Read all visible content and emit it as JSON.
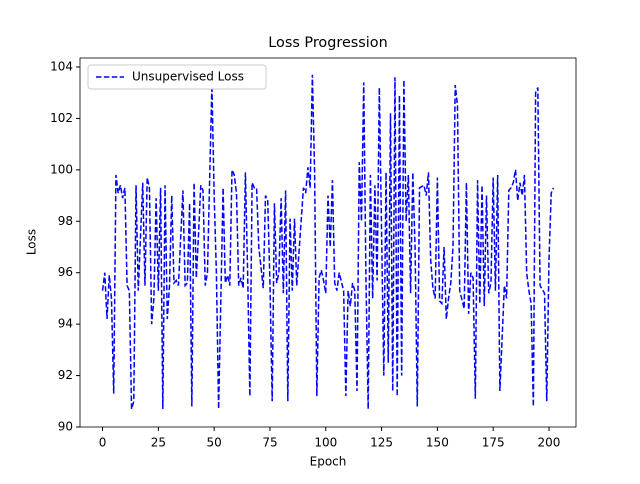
{
  "chart_data": {
    "type": "line",
    "title": "Loss Progression",
    "x_label": "Epoch",
    "y_label": "Loss",
    "legend": "upper left",
    "grid": false,
    "x": [
      0,
      1,
      2,
      3,
      4,
      5,
      6,
      7,
      8,
      9,
      10,
      11,
      12,
      13,
      14,
      15,
      16,
      18,
      19,
      20,
      21,
      22,
      23,
      24,
      25,
      26,
      27,
      28,
      29,
      30,
      31,
      32,
      33,
      34,
      36,
      37,
      38,
      39,
      40,
      41,
      42,
      43,
      44,
      45,
      46,
      47,
      48,
      49,
      50,
      51,
      52,
      54,
      55,
      56,
      57,
      58,
      59,
      60,
      61,
      62,
      63,
      64,
      65,
      66,
      67,
      68,
      69,
      70,
      72,
      73,
      74,
      75,
      76,
      77,
      78,
      79,
      80,
      81,
      82,
      83,
      84,
      85,
      86,
      87,
      88,
      90,
      91,
      92,
      93,
      94,
      95,
      96,
      97,
      98,
      99,
      100,
      101,
      102,
      103,
      104,
      105,
      106,
      108,
      109,
      110,
      111,
      112,
      113,
      114,
      115,
      116,
      117,
      118,
      119,
      120,
      121,
      122,
      123,
      124,
      126,
      127,
      128,
      129,
      130,
      131,
      132,
      133,
      134,
      135,
      136,
      137,
      138,
      139,
      140,
      141,
      142,
      144,
      145,
      146,
      147,
      148,
      149,
      150,
      151,
      152,
      153,
      154,
      155,
      156,
      157,
      158,
      159,
      160,
      162,
      163,
      164,
      165,
      166,
      167,
      168,
      169,
      170,
      171,
      172,
      173,
      174,
      175,
      176,
      177,
      178,
      180,
      181,
      182,
      183,
      184,
      185,
      186,
      187,
      188,
      189,
      190,
      191,
      192,
      193,
      194,
      195,
      196,
      198,
      199,
      200,
      201,
      202
    ],
    "series": [
      {
        "name": "Unsupervised Loss",
        "color": "#0000ff",
        "values": [
          95.3,
          96,
          94.2,
          95.9,
          95,
          91.3,
          99.8,
          99.1,
          99.4,
          98.9,
          99.3,
          95.5,
          95.3,
          90.7,
          91,
          99.4,
          95.3,
          99.5,
          95.5,
          99.7,
          99.3,
          94,
          95,
          98.9,
          95.3,
          99.3,
          90.7,
          99.4,
          94.2,
          95.5,
          99,
          95.6,
          95.7,
          95.5,
          99.2,
          95.5,
          95.6,
          98.7,
          90.8,
          99.5,
          95.8,
          97.5,
          99.4,
          99.2,
          95.5,
          96,
          99.7,
          103.3,
          99,
          96,
          90.7,
          99.3,
          95.6,
          95.9,
          95.5,
          100,
          99.8,
          99.1,
          95.5,
          95.8,
          95.4,
          99.9,
          96,
          91.2,
          99.5,
          99.3,
          99.3,
          97,
          95.4,
          99,
          98.8,
          95.6,
          91,
          98.7,
          95.6,
          96,
          98.9,
          95.2,
          99.2,
          91,
          98.1,
          95.3,
          98.1,
          95.5,
          96.8,
          99.3,
          99.1,
          100.1,
          99.3,
          103.7,
          99.9,
          91.2,
          95.8,
          96.1,
          95.7,
          95.2,
          99,
          97,
          99.6,
          95.6,
          95.3,
          96,
          95.3,
          91.2,
          95.3,
          94.7,
          95.6,
          95.3,
          91.4,
          100.3,
          98,
          103.4,
          95.8,
          90.7,
          99.8,
          95,
          99.4,
          95.7,
          103.2,
          92,
          99.9,
          92.5,
          102.2,
          91.4,
          103.6,
          91.2,
          102.9,
          92,
          103.5,
          98,
          99.8,
          95.2,
          99.9,
          97,
          90.8,
          99.3,
          99.4,
          99,
          99.9,
          96.5,
          95.4,
          95,
          99.7,
          94.9,
          94.8,
          97,
          94.2,
          95,
          95.6,
          97,
          103.3,
          102.5,
          95.3,
          94.6,
          99.5,
          94.4,
          96,
          95.8,
          91.1,
          99.6,
          94.8,
          99.4,
          94.7,
          99,
          95.2,
          95.6,
          99.7,
          95.3,
          99.8,
          91.4,
          95.5,
          95,
          99.2,
          99.3,
          99.5,
          100,
          98.8,
          99.5,
          99,
          99.8,
          96,
          95.3,
          94.8,
          90.8,
          103,
          103.2,
          95.5,
          95.2,
          91,
          96.5,
          99.1,
          99.3
        ]
      }
    ],
    "xlim": [
      -10.1,
      212.1
    ],
    "ylim": [
      90,
      104.35
    ],
    "xticks": [
      0,
      25,
      50,
      75,
      100,
      125,
      150,
      175,
      200
    ],
    "yticks": [
      90,
      92,
      94,
      96,
      98,
      100,
      102,
      104
    ]
  }
}
